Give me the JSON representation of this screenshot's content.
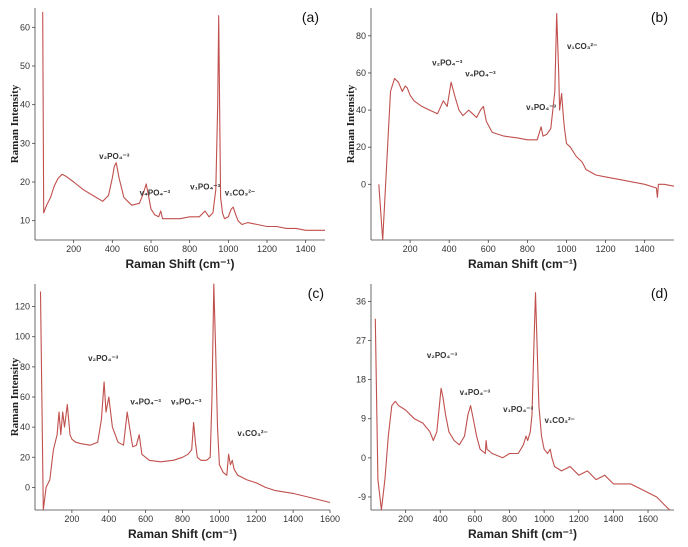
{
  "chart_data": [
    {
      "type": "line",
      "panel_label": "(a)",
      "xlabel": "Raman Shift (cm⁻¹)",
      "ylabel": "Raman Intensity",
      "xlim": [
        0,
        1500
      ],
      "ylim": [
        5,
        65
      ],
      "xticks": [
        200,
        400,
        600,
        800,
        1000,
        1200,
        1400
      ],
      "yticks": [
        10,
        20,
        30,
        40,
        50,
        60
      ],
      "series": [
        {
          "name": "spectrum (a)",
          "color": "#c0504d",
          "x": [
            40,
            45,
            60,
            80,
            100,
            120,
            140,
            160,
            200,
            250,
            300,
            350,
            380,
            400,
            410,
            420,
            435,
            460,
            500,
            540,
            560,
            575,
            585,
            600,
            620,
            640,
            650,
            660,
            680,
            700,
            750,
            800,
            850,
            880,
            900,
            920,
            935,
            945,
            950,
            955,
            960,
            970,
            980,
            1000,
            1015,
            1025,
            1035,
            1050,
            1070,
            1100,
            1150,
            1200,
            1250,
            1300,
            1350,
            1400,
            1450,
            1500
          ],
          "y": [
            64,
            12,
            14,
            16,
            19,
            21,
            22,
            21.5,
            20,
            18,
            16.5,
            15,
            16.5,
            21,
            24,
            25,
            21,
            16,
            14,
            14.5,
            17,
            19.5,
            17,
            13,
            11.5,
            11,
            12.5,
            10.5,
            10.5,
            10.5,
            10.5,
            11,
            11,
            12.5,
            11,
            12,
            18,
            40,
            63,
            40,
            16,
            12,
            10.5,
            11,
            13,
            13.5,
            12,
            10,
            9,
            9.5,
            9,
            8.5,
            8.5,
            8,
            8,
            7.5,
            7.5,
            7.5
          ]
        }
      ],
      "annotations": [
        {
          "text": "v₂PO₄⁻³",
          "x": 410,
          "y": 26
        },
        {
          "text": "v₄PO₄⁻³",
          "x": 620,
          "y": 16.5
        },
        {
          "text": "v₁PO₄⁻³",
          "x": 880,
          "y": 18
        },
        {
          "text": "v₁CO₃²⁻",
          "x": 1060,
          "y": 16.5
        }
      ]
    },
    {
      "type": "line",
      "panel_label": "(b)",
      "xlabel": "Raman Shift (cm⁻¹)",
      "ylabel": "Raman Intensity",
      "xlim": [
        0,
        1550
      ],
      "ylim": [
        -30,
        95
      ],
      "xticks": [
        200,
        400,
        600,
        800,
        1000,
        1200,
        1400
      ],
      "yticks": [
        0,
        20,
        40,
        60,
        80
      ],
      "series": [
        {
          "name": "spectrum (b)",
          "color": "#c0504d",
          "x": [
            40,
            60,
            80,
            100,
            120,
            140,
            160,
            175,
            185,
            200,
            220,
            260,
            300,
            340,
            370,
            390,
            410,
            430,
            450,
            470,
            500,
            520,
            540,
            560,
            575,
            590,
            620,
            680,
            750,
            800,
            850,
            870,
            880,
            900,
            920,
            940,
            950,
            960,
            965,
            975,
            985,
            990,
            1000,
            1020,
            1050,
            1080,
            1100,
            1150,
            1200,
            1300,
            1400,
            1460,
            1465,
            1470,
            1500,
            1550
          ],
          "y": [
            0,
            -30,
            10,
            50,
            57,
            55,
            50,
            53,
            52,
            48,
            45,
            42,
            40,
            38,
            45,
            42,
            55,
            47,
            40,
            37,
            40,
            38,
            36,
            40,
            42,
            34,
            28,
            26,
            25,
            24,
            24,
            31,
            26,
            27,
            30,
            50,
            92,
            60,
            40,
            49,
            35,
            30,
            22,
            20,
            15,
            12,
            8,
            5,
            4,
            2,
            0,
            -2,
            -7,
            0,
            0,
            -1
          ]
        }
      ],
      "annotations": [
        {
          "text": "v₂PO₄⁻³",
          "x": 390,
          "y": 64
        },
        {
          "text": "v₄PO₄⁻³",
          "x": 560,
          "y": 58
        },
        {
          "text": "v₁PO₄⁻³",
          "x": 870,
          "y": 40
        },
        {
          "text": "v₁CO₃²⁻",
          "x": 1080,
          "y": 73
        }
      ]
    },
    {
      "type": "line",
      "panel_label": "(c)",
      "xlabel": "Raman Shift (cm⁻¹)",
      "ylabel": "Raman Intensity",
      "xlim": [
        0,
        1600
      ],
      "ylim": [
        -15,
        135
      ],
      "xticks": [
        200,
        400,
        600,
        800,
        1000,
        1200,
        1400,
        1600
      ],
      "yticks": [
        0,
        20,
        40,
        60,
        80,
        100,
        120
      ],
      "series": [
        {
          "name": "spectrum (c)",
          "color": "#c0504d",
          "x": [
            30,
            45,
            60,
            80,
            100,
            120,
            130,
            140,
            150,
            160,
            175,
            190,
            200,
            220,
            250,
            300,
            340,
            360,
            375,
            385,
            400,
            420,
            450,
            480,
            500,
            515,
            530,
            550,
            565,
            580,
            620,
            680,
            750,
            800,
            830,
            850,
            860,
            870,
            880,
            900,
            930,
            950,
            960,
            970,
            980,
            990,
            1000,
            1020,
            1040,
            1050,
            1060,
            1070,
            1080,
            1100,
            1150,
            1200,
            1250,
            1300,
            1400,
            1500,
            1600
          ],
          "y": [
            130,
            -15,
            0,
            5,
            25,
            35,
            50,
            35,
            50,
            40,
            55,
            35,
            32,
            30,
            29,
            28,
            30,
            45,
            70,
            50,
            60,
            40,
            30,
            28,
            50,
            38,
            27,
            28,
            35,
            22,
            18,
            17,
            18,
            20,
            22,
            25,
            43,
            30,
            20,
            18,
            18,
            20,
            60,
            135,
            90,
            40,
            15,
            10,
            8,
            22,
            15,
            18,
            12,
            8,
            5,
            3,
            0,
            -2,
            -4,
            -7,
            -10
          ]
        }
      ],
      "annotations": [
        {
          "text": "v₂PO₄⁻³",
          "x": 370,
          "y": 84
        },
        {
          "text": "v₄PO₄⁻³",
          "x": 600,
          "y": 55
        },
        {
          "text": "v₃PO₄⁻³",
          "x": 820,
          "y": 55
        },
        {
          "text": "v₁CO₃²⁻",
          "x": 1180,
          "y": 34
        }
      ]
    },
    {
      "type": "line",
      "panel_label": "(d)",
      "xlabel": "Raman Shift (cm⁻¹)",
      "ylabel": "",
      "xlim": [
        0,
        1750
      ],
      "ylim": [
        -12,
        40
      ],
      "xticks": [
        200,
        400,
        600,
        800,
        1000,
        1200,
        1400,
        1600
      ],
      "yticks": [
        -9,
        0,
        9,
        18,
        27,
        36
      ],
      "series": [
        {
          "name": "spectrum (d)",
          "color": "#c0504d",
          "x": [
            25,
            40,
            60,
            80,
            100,
            120,
            140,
            160,
            200,
            250,
            300,
            340,
            360,
            380,
            395,
            405,
            415,
            430,
            450,
            480,
            510,
            540,
            560,
            575,
            590,
            610,
            630,
            660,
            665,
            670,
            700,
            760,
            800,
            850,
            880,
            895,
            905,
            920,
            930,
            940,
            950,
            960,
            970,
            985,
            1000,
            1020,
            1035,
            1045,
            1060,
            1100,
            1150,
            1200,
            1250,
            1300,
            1350,
            1400,
            1450,
            1500,
            1550,
            1600,
            1650,
            1700,
            1750
          ],
          "y": [
            32,
            -5,
            -12,
            -5,
            5,
            12,
            13,
            12,
            11,
            9,
            8,
            6,
            4,
            6,
            12,
            16,
            14,
            10,
            6,
            4,
            3,
            5,
            10,
            12,
            9,
            5,
            2,
            1,
            4,
            2,
            1,
            0,
            1,
            1,
            3,
            5,
            4,
            6,
            10,
            25,
            38,
            25,
            12,
            5,
            2,
            1,
            2,
            0,
            -2,
            -3,
            -2,
            -4,
            -3,
            -5,
            -4,
            -6,
            -6,
            -6,
            -7,
            -8,
            -9,
            -11,
            -13
          ]
        }
      ],
      "annotations": [
        {
          "text": "v₂PO₄⁻³",
          "x": 410,
          "y": 23
        },
        {
          "text": "v₄PO₄⁻³",
          "x": 600,
          "y": 14.5
        },
        {
          "text": "v₁PO₄⁻³",
          "x": 850,
          "y": 10.5
        },
        {
          "text": "v₁CO₃²⁻",
          "x": 1090,
          "y": 8
        }
      ]
    }
  ]
}
